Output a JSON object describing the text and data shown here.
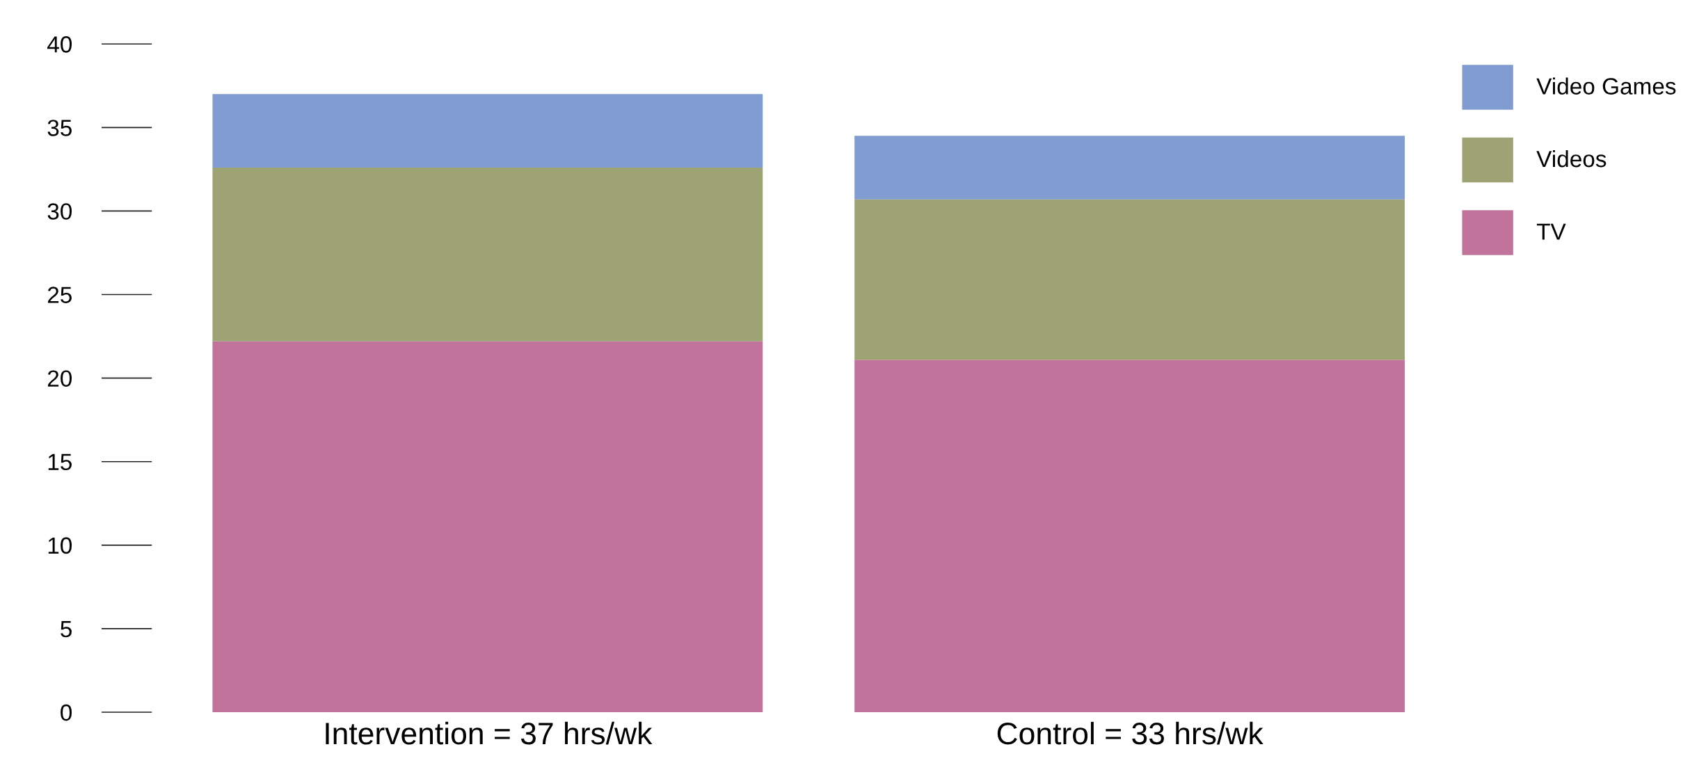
{
  "chart_data": {
    "type": "bar",
    "stacked": true,
    "categories": [
      "Intervention = 37 hrs/wk",
      "Control = 33 hrs/wk"
    ],
    "series": [
      {
        "name": "TV",
        "color": "#c1739b",
        "values": [
          22.2,
          21.1
        ]
      },
      {
        "name": "Videos",
        "color": "#9ea373",
        "values": [
          10.4,
          9.6
        ]
      },
      {
        "name": "Video Games",
        "color": "#809cd1",
        "values": [
          4.4,
          3.8
        ]
      }
    ],
    "ylim": [
      0,
      40
    ],
    "yticks": [
      0,
      5,
      10,
      15,
      20,
      25,
      30,
      35,
      40
    ],
    "grid": false,
    "legend": "top right"
  }
}
